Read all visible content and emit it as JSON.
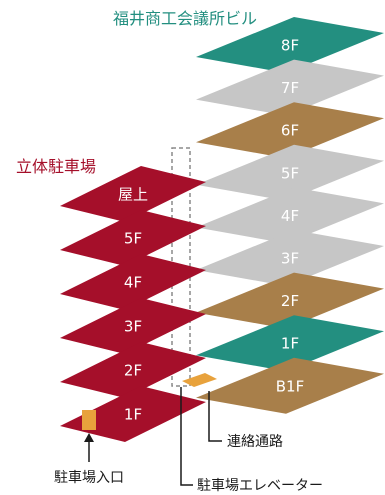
{
  "building_title": "福井商工会議所ビル",
  "parking_title": "立体駐車場",
  "colors": {
    "accent_teal": "#238f80",
    "parking_red": "#a50f2a",
    "floor_brown": "#a87f4a",
    "floor_gray": "#c6c6c6",
    "connector_orange": "#e8a23c",
    "annotation_line": "#1a1a1a"
  },
  "building_floors": [
    {
      "label": "8F",
      "color": "teal"
    },
    {
      "label": "7F",
      "color": "gray"
    },
    {
      "label": "6F",
      "color": "brown"
    },
    {
      "label": "5F",
      "color": "gray"
    },
    {
      "label": "4F",
      "color": "gray"
    },
    {
      "label": "3F",
      "color": "gray"
    },
    {
      "label": "2F",
      "color": "brown"
    },
    {
      "label": "1F",
      "color": "teal"
    },
    {
      "label": "B1F",
      "color": "brown"
    }
  ],
  "parking_floors": [
    {
      "label": "屋上"
    },
    {
      "label": "5F"
    },
    {
      "label": "4F"
    },
    {
      "label": "3F"
    },
    {
      "label": "2F"
    },
    {
      "label": "1F"
    }
  ],
  "annotations": {
    "connecting_passage": "連絡通路",
    "parking_entrance": "駐車場入口",
    "parking_elevator": "駐車場エレベーター"
  }
}
